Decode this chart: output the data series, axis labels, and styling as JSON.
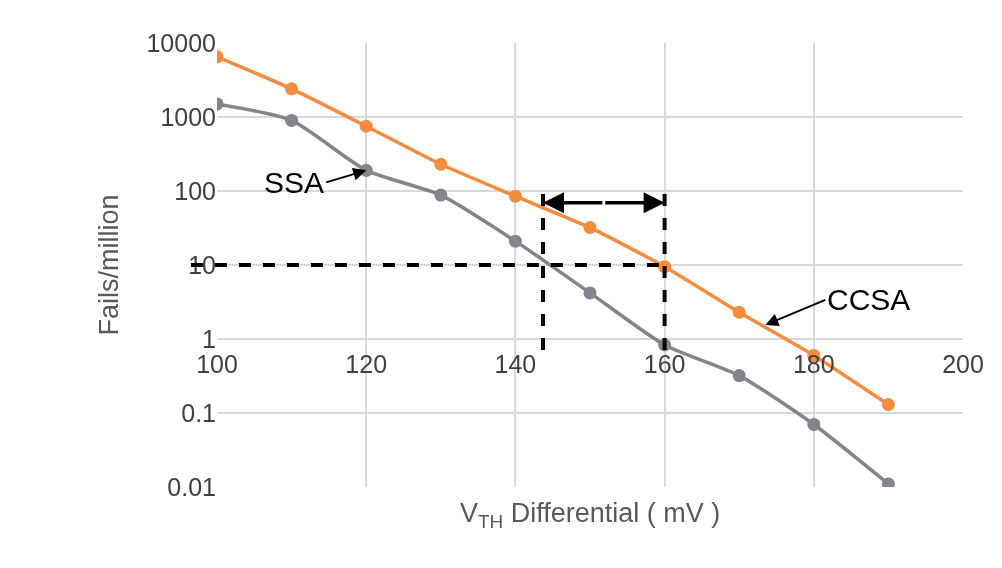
{
  "chart_data": {
    "type": "line",
    "xlabel": "V$_{TH}$ Differential ( mV )",
    "ylabel": "Fails/million",
    "x": [
      100,
      110,
      120,
      130,
      140,
      150,
      160,
      170,
      180,
      190
    ],
    "series": [
      {
        "color": "#f58b3f",
        "values": [
          6500,
          2400,
          750,
          230,
          85,
          32,
          9.5,
          2.3,
          0.6,
          0.13
        ]
      },
      {
        "color": "#84848a",
        "values": [
          1500,
          900,
          190,
          88,
          21,
          4.2,
          0.83,
          0.32,
          0.07,
          0.011
        ]
      }
    ],
    "xlim": [
      100,
      200
    ],
    "xticks": [
      100,
      120,
      140,
      160,
      180,
      200
    ],
    "ylim": [
      0.01,
      10000
    ],
    "yticks": [
      0.01,
      0.1,
      1,
      10,
      100,
      1000,
      10000
    ],
    "log": "y",
    "grid": true,
    "legend": false,
    "marker": "circle",
    "line_style": "solid",
    "ref_lines": [
      {
        "axis": "y",
        "value": 10,
        "color": "#000000",
        "line_style": "dashed"
      },
      {
        "axis": "x",
        "value": 143.7,
        "color": "#000000",
        "line_style": "dashed"
      },
      {
        "axis": "x",
        "value": 160,
        "color": "#000000",
        "line_style": "dashed"
      }
    ],
    "annotations": [
      {
        "text": "SSA",
        "x": 120,
        "y": 190
      },
      {
        "text": "CCSA",
        "x": 173.5,
        "y": 1.55
      }
    ]
  }
}
